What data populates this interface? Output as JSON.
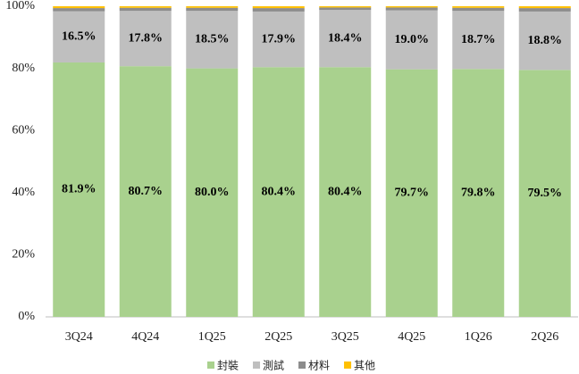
{
  "chart_data": {
    "type": "stacked_bar",
    "categories": [
      "3Q24",
      "4Q24",
      "1Q25",
      "2Q25",
      "3Q25",
      "4Q25",
      "1Q26",
      "2Q26"
    ],
    "series": [
      {
        "name": "封裝",
        "color": "#a9d18e",
        "values": [
          81.9,
          80.7,
          80.0,
          80.4,
          80.4,
          79.7,
          79.8,
          79.5
        ],
        "value_labels": [
          "81.9%",
          "80.7%",
          "80.0%",
          "80.4%",
          "80.4%",
          "79.7%",
          "79.8%",
          "79.5%"
        ]
      },
      {
        "name": "測試",
        "color": "#bfbfbf",
        "values": [
          16.5,
          17.8,
          18.5,
          17.9,
          18.4,
          19.0,
          18.7,
          18.8
        ],
        "value_labels": [
          "16.5%",
          "17.8%",
          "18.5%",
          "17.9%",
          "18.4%",
          "19.0%",
          "18.7%",
          "18.8%"
        ]
      },
      {
        "name": "材料",
        "color": "#8c8c8c",
        "values": [
          1.0,
          1.0,
          1.0,
          1.1,
          0.8,
          0.9,
          1.0,
          1.1
        ]
      },
      {
        "name": "其他",
        "color": "#ffc000",
        "values": [
          0.6,
          0.5,
          0.5,
          0.6,
          0.4,
          0.4,
          0.5,
          0.6
        ]
      }
    ],
    "ylim": [
      0,
      100
    ],
    "yticks": [
      {
        "value": 0,
        "label": "0%"
      },
      {
        "value": 20,
        "label": "20%"
      },
      {
        "value": 40,
        "label": "40%"
      },
      {
        "value": 60,
        "label": "60%"
      },
      {
        "value": 80,
        "label": "80%"
      },
      {
        "value": 100,
        "label": "100%"
      }
    ],
    "grid": false,
    "legend": "bottom"
  }
}
